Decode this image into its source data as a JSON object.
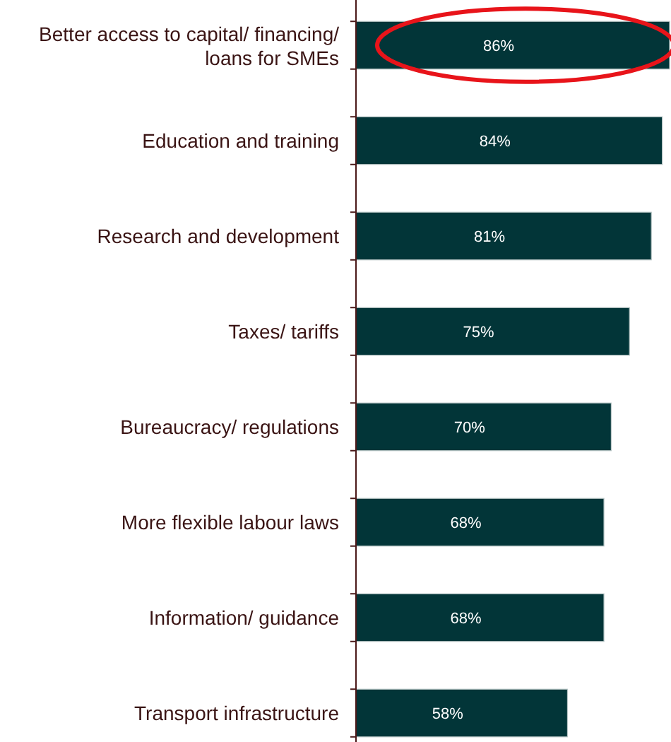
{
  "chart_data": {
    "type": "bar",
    "orientation": "horizontal",
    "categories": [
      "Better access to capital/ financing/ loans for SMEs",
      "Education and training",
      "Research and development",
      "Taxes/ tariffs",
      "Bureaucracy/ regulations",
      "More flexible labour laws",
      "Information/ guidance",
      "Transport infrastructure"
    ],
    "values": [
      86,
      84,
      81,
      75,
      70,
      68,
      68,
      58
    ],
    "value_labels": [
      "86%",
      "84%",
      "81%",
      "75%",
      "70%",
      "68%",
      "68%",
      "58%"
    ],
    "color": "#023538"
  }
}
